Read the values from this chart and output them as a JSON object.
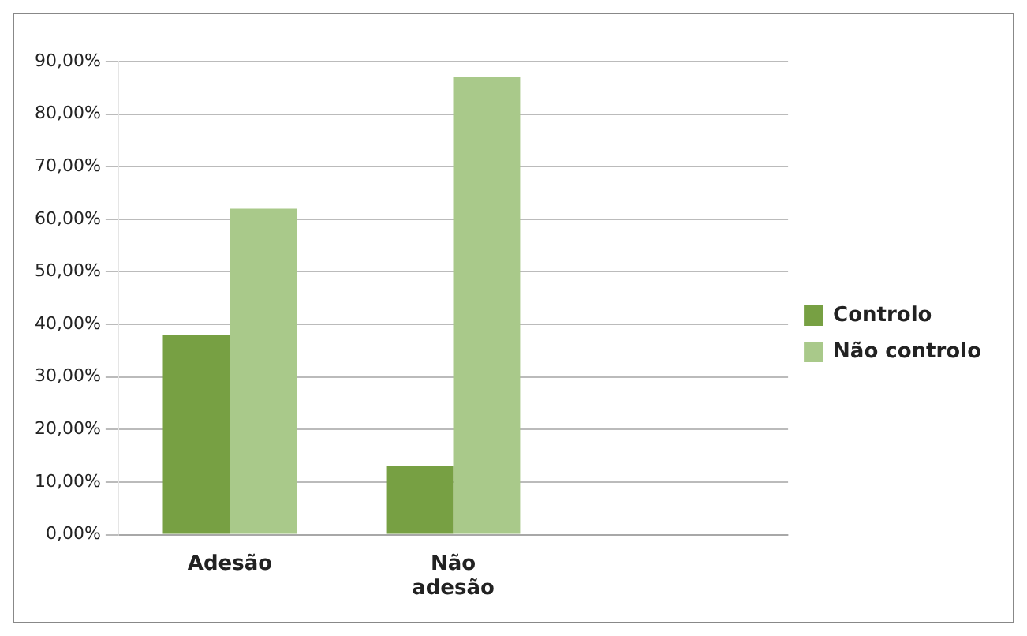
{
  "chart_data": {
    "type": "bar",
    "categories": [
      "Adesão",
      "Não adesão",
      null
    ],
    "series": [
      {
        "name": "Controlo",
        "color": "#77a043",
        "values": [
          38,
          13,
          null
        ]
      },
      {
        "name": "Não controlo",
        "color": "#a9c98a",
        "values": [
          62,
          87,
          null
        ]
      }
    ],
    "ylim": [
      0,
      90
    ],
    "yticks": [
      {
        "value": 0,
        "label": "0,00%"
      },
      {
        "value": 10,
        "label": "10,00%"
      },
      {
        "value": 20,
        "label": "20,00%"
      },
      {
        "value": 30,
        "label": "30,00%"
      },
      {
        "value": 40,
        "label": "40,00%"
      },
      {
        "value": 50,
        "label": "50,00%"
      },
      {
        "value": 60,
        "label": "60,00%"
      },
      {
        "value": 70,
        "label": "70,00%"
      },
      {
        "value": 80,
        "label": "80,00%"
      },
      {
        "value": 90,
        "label": "90,00%"
      }
    ],
    "grid": "y",
    "legend": "right"
  }
}
